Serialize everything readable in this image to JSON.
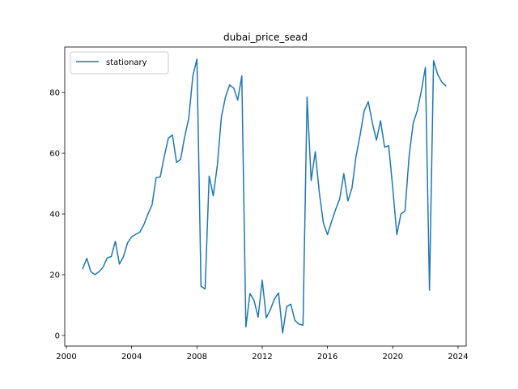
{
  "chart_data": {
    "type": "line",
    "title": "dubai_price_sead",
    "xlabel": "",
    "ylabel": "",
    "xlim": [
      1999.9,
      2024.5
    ],
    "ylim": [
      -3.5,
      95
    ],
    "x_ticks": [
      2000,
      2004,
      2008,
      2012,
      2016,
      2020,
      2024
    ],
    "y_ticks": [
      0,
      20,
      40,
      60,
      80
    ],
    "grid": false,
    "legend": {
      "placement": "top-left",
      "entries": [
        "stationary"
      ]
    },
    "colors": {
      "series": "#1f77b4",
      "axes": "#000000",
      "legend_border": "#cccccc"
    },
    "series": [
      {
        "name": "stationary",
        "x": [
          2001.0,
          2001.25,
          2001.5,
          2001.75,
          2002.0,
          2002.25,
          2002.5,
          2002.75,
          2003.0,
          2003.25,
          2003.5,
          2003.75,
          2004.0,
          2004.25,
          2004.5,
          2004.75,
          2005.0,
          2005.25,
          2005.5,
          2005.75,
          2006.0,
          2006.25,
          2006.5,
          2006.75,
          2007.0,
          2007.25,
          2007.5,
          2007.75,
          2008.0,
          2008.25,
          2008.5,
          2008.75,
          2009.0,
          2009.25,
          2009.5,
          2009.75,
          2010.0,
          2010.25,
          2010.5,
          2010.75,
          2011.0,
          2011.25,
          2011.5,
          2011.75,
          2012.0,
          2012.25,
          2012.5,
          2012.75,
          2013.0,
          2013.25,
          2013.5,
          2013.75,
          2014.0,
          2014.25,
          2014.5,
          2014.75,
          2015.0,
          2015.25,
          2015.5,
          2015.75,
          2016.0,
          2016.25,
          2016.5,
          2016.75,
          2017.0,
          2017.25,
          2017.5,
          2017.75,
          2018.0,
          2018.25,
          2018.5,
          2018.75,
          2019.0,
          2019.25,
          2019.5,
          2019.75,
          2020.0,
          2020.25,
          2020.5,
          2020.75,
          2021.0,
          2021.25,
          2021.5,
          2021.75,
          2022.0,
          2022.25,
          2022.5,
          2022.75,
          2023.0,
          2023.25
        ],
        "values": [
          22,
          25.4,
          21,
          20,
          21,
          22.5,
          25.5,
          26,
          31,
          23.5,
          26,
          30.5,
          32.5,
          33.3,
          34,
          36.5,
          40,
          43,
          52,
          52.2,
          59,
          65,
          66,
          57,
          58,
          65.5,
          71.5,
          85.5,
          91,
          16.2,
          15.3,
          52.5,
          46,
          56,
          72,
          78.5,
          82.5,
          81.5,
          77.5,
          85.5,
          2.8,
          13.8,
          11.5,
          6,
          18.2,
          5.8,
          8.5,
          12,
          14,
          0.8,
          9.5,
          10.3,
          5,
          3.7,
          3.4,
          78.5,
          51,
          60.5,
          47,
          37,
          33.2,
          37.5,
          41.5,
          45,
          53.3,
          44.3,
          48.5,
          59,
          66,
          74,
          77,
          70,
          64.3,
          70.7,
          62,
          62.5,
          48.5,
          33.2,
          40,
          41,
          59,
          69.8,
          74,
          80.5,
          88.3,
          14.9,
          90.5,
          86,
          83.5,
          82.2
        ]
      }
    ]
  }
}
